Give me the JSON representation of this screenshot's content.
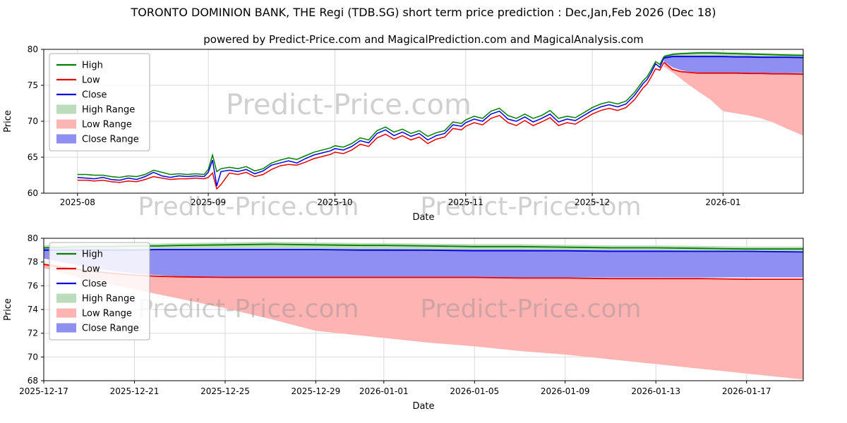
{
  "title": "TORONTO DOMINION BANK, THE Regi (TDB.SG) short term price prediction : Dec,Jan,Feb 2026 (Dec 18)",
  "subtitle": "powered by Predict-Price.com and MagicalPrediction.com and MagicalAnalysis.com",
  "watermark_text": "Predict-Price.com",
  "colors": {
    "high_line": "#008000",
    "low_line": "#e60000",
    "close_line": "#0000e0",
    "high_range": "#bcdcbc",
    "low_range": "#ffb4b4",
    "close_range": "#8f8ff2",
    "grid": "#d9d9d9",
    "spine": "#000000",
    "watermark": "#909090"
  },
  "legend_items": [
    {
      "label": "High",
      "swatch": "line",
      "color_key": "high_line"
    },
    {
      "label": "Low",
      "swatch": "line",
      "color_key": "low_line"
    },
    {
      "label": "Close",
      "swatch": "line",
      "color_key": "close_line"
    },
    {
      "label": "High Range",
      "swatch": "patch",
      "color_key": "high_range"
    },
    {
      "label": "Low Range",
      "swatch": "patch",
      "color_key": "low_range"
    },
    {
      "label": "Close Range",
      "swatch": "patch",
      "color_key": "close_range"
    }
  ],
  "chart_data": [
    {
      "type": "line",
      "id": "main-history-and-forecast",
      "xlabel": "Date",
      "ylabel": "Price",
      "grid": true,
      "legend_position": "upper left",
      "xlim_days": [
        -8,
        172
      ],
      "ylim": [
        60,
        80
      ],
      "yticks": [
        60,
        65,
        70,
        75,
        80
      ],
      "xticks": [
        {
          "day": 0,
          "label": "2025-08"
        },
        {
          "day": 31,
          "label": "2025-09"
        },
        {
          "day": 61,
          "label": "2025-10"
        },
        {
          "day": 92,
          "label": "2025-11"
        },
        {
          "day": 122,
          "label": "2025-12"
        },
        {
          "day": 153,
          "label": "2026-01"
        }
      ],
      "history": {
        "columns": [
          "day",
          "high",
          "low",
          "close"
        ],
        "points": [
          [
            0,
            62.6,
            61.8,
            62.2
          ],
          [
            2,
            62.6,
            61.8,
            62.1
          ],
          [
            4,
            62.5,
            61.7,
            62.0
          ],
          [
            6,
            62.5,
            61.8,
            62.2
          ],
          [
            8,
            62.3,
            61.6,
            61.9
          ],
          [
            10,
            62.2,
            61.5,
            61.8
          ],
          [
            12,
            62.4,
            61.7,
            62.1
          ],
          [
            14,
            62.3,
            61.6,
            61.9
          ],
          [
            16,
            62.6,
            61.9,
            62.3
          ],
          [
            18,
            63.2,
            62.3,
            62.9
          ],
          [
            20,
            62.9,
            62.1,
            62.4
          ],
          [
            22,
            62.6,
            61.9,
            62.2
          ],
          [
            24,
            62.7,
            62.0,
            62.4
          ],
          [
            26,
            62.6,
            62.0,
            62.3
          ],
          [
            28,
            62.7,
            62.1,
            62.4
          ],
          [
            30,
            62.6,
            62.0,
            62.3
          ],
          [
            31,
            63.3,
            62.2,
            62.9
          ],
          [
            32,
            65.3,
            62.8,
            64.6
          ],
          [
            33,
            63.0,
            60.6,
            61.0
          ],
          [
            34,
            63.4,
            61.2,
            63.0
          ],
          [
            36,
            63.6,
            62.8,
            63.2
          ],
          [
            38,
            63.4,
            62.6,
            63.0
          ],
          [
            40,
            63.7,
            62.9,
            63.3
          ],
          [
            42,
            63.1,
            62.3,
            62.7
          ],
          [
            44,
            63.4,
            62.6,
            63.1
          ],
          [
            46,
            64.2,
            63.3,
            63.9
          ],
          [
            48,
            64.6,
            63.8,
            64.2
          ],
          [
            50,
            64.9,
            64.0,
            64.5
          ],
          [
            52,
            64.7,
            63.9,
            64.2
          ],
          [
            54,
            65.2,
            64.3,
            64.8
          ],
          [
            56,
            65.7,
            64.8,
            65.3
          ],
          [
            58,
            66.0,
            65.1,
            65.6
          ],
          [
            60,
            66.3,
            65.4,
            65.9
          ],
          [
            61,
            66.6,
            65.7,
            66.2
          ],
          [
            63,
            66.4,
            65.5,
            66.0
          ],
          [
            65,
            66.9,
            66.0,
            66.5
          ],
          [
            67,
            67.7,
            66.8,
            67.3
          ],
          [
            69,
            67.4,
            66.5,
            67.0
          ],
          [
            71,
            68.7,
            67.7,
            68.3
          ],
          [
            73,
            69.2,
            68.2,
            68.8
          ],
          [
            75,
            68.5,
            67.5,
            68.0
          ],
          [
            77,
            68.9,
            68.0,
            68.5
          ],
          [
            79,
            68.3,
            67.4,
            67.9
          ],
          [
            81,
            68.7,
            67.8,
            68.3
          ],
          [
            83,
            67.9,
            66.9,
            67.4
          ],
          [
            85,
            68.4,
            67.5,
            68.0
          ],
          [
            87,
            68.7,
            67.8,
            68.3
          ],
          [
            89,
            69.9,
            69.0,
            69.5
          ],
          [
            91,
            69.7,
            68.8,
            69.3
          ],
          [
            92,
            70.2,
            69.3,
            69.8
          ],
          [
            94,
            70.7,
            69.8,
            70.3
          ],
          [
            96,
            70.4,
            69.5,
            70.0
          ],
          [
            98,
            71.4,
            70.4,
            71.0
          ],
          [
            100,
            71.8,
            70.8,
            71.4
          ],
          [
            102,
            70.8,
            69.8,
            70.3
          ],
          [
            104,
            70.4,
            69.4,
            70.0
          ],
          [
            106,
            71.0,
            70.1,
            70.6
          ],
          [
            108,
            70.4,
            69.4,
            69.9
          ],
          [
            110,
            70.8,
            69.9,
            70.4
          ],
          [
            112,
            71.5,
            70.5,
            71.0
          ],
          [
            114,
            70.4,
            69.4,
            69.9
          ],
          [
            116,
            70.7,
            69.8,
            70.3
          ],
          [
            118,
            70.5,
            69.6,
            70.1
          ],
          [
            120,
            71.2,
            70.3,
            70.8
          ],
          [
            122,
            71.9,
            71.0,
            71.5
          ],
          [
            124,
            72.4,
            71.5,
            72.0
          ],
          [
            126,
            72.7,
            71.8,
            72.3
          ],
          [
            128,
            72.4,
            71.5,
            72.0
          ],
          [
            130,
            72.8,
            71.9,
            72.4
          ],
          [
            132,
            74.0,
            73.0,
            73.6
          ],
          [
            134,
            75.6,
            74.6,
            75.2
          ],
          [
            135,
            76.2,
            75.2,
            75.8
          ],
          [
            136,
            77.2,
            76.2,
            76.8
          ],
          [
            137,
            78.3,
            77.3,
            78.0
          ],
          [
            138,
            77.9,
            77.1,
            77.5
          ],
          [
            139,
            79.0,
            78.2,
            78.8
          ]
        ]
      },
      "forecast": {
        "days": [
          139,
          141,
          143,
          145,
          147,
          150,
          153,
          156,
          159,
          162,
          165,
          168,
          172
        ],
        "high": [
          79.0,
          79.3,
          79.4,
          79.45,
          79.5,
          79.5,
          79.45,
          79.4,
          79.35,
          79.3,
          79.25,
          79.2,
          79.15
        ],
        "low": [
          78.2,
          77.2,
          76.9,
          76.8,
          76.7,
          76.7,
          76.7,
          76.7,
          76.65,
          76.65,
          76.6,
          76.6,
          76.55
        ],
        "close": [
          78.8,
          79.0,
          79.0,
          79.0,
          79.0,
          79.0,
          79.0,
          78.95,
          78.95,
          78.9,
          78.9,
          78.9,
          78.85
        ],
        "high_range": {
          "upper": [
            79.2,
            79.45,
            79.55,
            79.6,
            79.65,
            79.7,
            79.65,
            79.6,
            79.55,
            79.5,
            79.45,
            79.4,
            79.35
          ],
          "lower": [
            78.8,
            78.8,
            78.8,
            78.8,
            78.8,
            78.8,
            78.8,
            78.8,
            78.8,
            78.8,
            78.8,
            78.8,
            78.8
          ]
        },
        "close_range": {
          "upper": [
            79.1,
            79.15,
            79.15,
            79.1,
            79.1,
            79.1,
            79.1,
            79.05,
            79.05,
            79.0,
            79.0,
            78.95,
            78.95
          ],
          "lower": [
            78.3,
            77.5,
            77.1,
            76.9,
            76.8,
            76.7,
            76.7,
            76.7,
            76.7,
            76.7,
            76.7,
            76.7,
            76.7
          ]
        },
        "low_range": {
          "upper": [
            78.0,
            77.3,
            77.0,
            76.85,
            76.75,
            76.7,
            76.7,
            76.7,
            76.7,
            76.65,
            76.65,
            76.6,
            76.6
          ],
          "lower": [
            77.6,
            76.8,
            75.9,
            75.0,
            74.2,
            73.0,
            71.4,
            71.1,
            70.8,
            70.4,
            69.8,
            69.0,
            68.0
          ]
        }
      }
    },
    {
      "type": "line",
      "id": "forecast-zoom",
      "xlabel": "Date",
      "ylabel": "Price",
      "grid": true,
      "legend_position": "upper left",
      "xlim_days": [
        0,
        33.5
      ],
      "ylim": [
        68,
        80
      ],
      "yticks": [
        68,
        70,
        72,
        74,
        76,
        78,
        80
      ],
      "xticks": [
        {
          "day": 0,
          "label": "2025-12-17"
        },
        {
          "day": 4,
          "label": "2025-12-21"
        },
        {
          "day": 8,
          "label": "2025-12-25"
        },
        {
          "day": 12,
          "label": "2025-12-29"
        },
        {
          "day": 15,
          "label": "2026-01-01"
        },
        {
          "day": 19,
          "label": "2026-01-05"
        },
        {
          "day": 23,
          "label": "2026-01-09"
        },
        {
          "day": 27,
          "label": "2026-01-13"
        },
        {
          "day": 31,
          "label": "2026-01-17"
        }
      ],
      "forecast": {
        "days": [
          0,
          1,
          2,
          3,
          4,
          5,
          6,
          8,
          10,
          12,
          14,
          15,
          17,
          19,
          21,
          23,
          25,
          27,
          29,
          31,
          33.5
        ],
        "high": [
          79.2,
          79.25,
          79.3,
          79.3,
          79.35,
          79.35,
          79.4,
          79.45,
          79.5,
          79.45,
          79.4,
          79.4,
          79.35,
          79.3,
          79.3,
          79.25,
          79.2,
          79.2,
          79.15,
          79.1,
          79.1
        ],
        "close": [
          79.0,
          79.0,
          79.0,
          79.0,
          79.0,
          79.05,
          79.05,
          79.05,
          79.05,
          79.05,
          79.0,
          79.0,
          79.0,
          78.95,
          78.95,
          78.95,
          78.9,
          78.9,
          78.9,
          78.9,
          78.85
        ],
        "low": [
          77.8,
          77.5,
          77.25,
          77.05,
          76.9,
          76.8,
          76.75,
          76.7,
          76.7,
          76.7,
          76.7,
          76.7,
          76.7,
          76.7,
          76.65,
          76.65,
          76.6,
          76.6,
          76.6,
          76.55,
          76.55
        ],
        "high_range": {
          "upper": [
            79.4,
            79.45,
            79.5,
            79.5,
            79.55,
            79.55,
            79.6,
            79.65,
            79.7,
            79.65,
            79.6,
            79.6,
            79.55,
            79.5,
            79.5,
            79.45,
            79.4,
            79.4,
            79.35,
            79.3,
            79.3
          ],
          "lower": [
            78.8,
            78.8,
            78.8,
            78.8,
            78.8,
            78.8,
            78.8,
            78.8,
            78.8,
            78.8,
            78.8,
            78.8,
            78.8,
            78.8,
            78.8,
            78.8,
            78.8,
            78.8,
            78.8,
            78.8,
            78.8
          ]
        },
        "close_range": {
          "upper": [
            79.15,
            79.15,
            79.15,
            79.15,
            79.1,
            79.1,
            79.1,
            79.1,
            79.1,
            79.1,
            79.1,
            79.1,
            79.05,
            79.05,
            79.05,
            79.0,
            79.0,
            79.0,
            78.95,
            78.95,
            78.9
          ],
          "lower": [
            78.3,
            77.9,
            77.55,
            77.25,
            77.05,
            76.9,
            76.8,
            76.7,
            76.7,
            76.7,
            76.7,
            76.7,
            76.7,
            76.7,
            76.7,
            76.7,
            76.7,
            76.7,
            76.7,
            76.7,
            76.7
          ]
        },
        "low_range": {
          "upper": [
            77.9,
            77.6,
            77.35,
            77.1,
            76.95,
            76.85,
            76.8,
            76.75,
            76.7,
            76.7,
            76.7,
            76.7,
            76.7,
            76.7,
            76.7,
            76.65,
            76.65,
            76.6,
            76.6,
            76.6,
            76.55
          ],
          "lower": [
            77.5,
            77.0,
            76.5,
            76.1,
            75.7,
            75.3,
            74.9,
            74.1,
            73.2,
            72.2,
            71.8,
            71.6,
            71.2,
            70.9,
            70.5,
            70.2,
            69.8,
            69.4,
            69.0,
            68.6,
            68.1
          ]
        }
      }
    }
  ]
}
